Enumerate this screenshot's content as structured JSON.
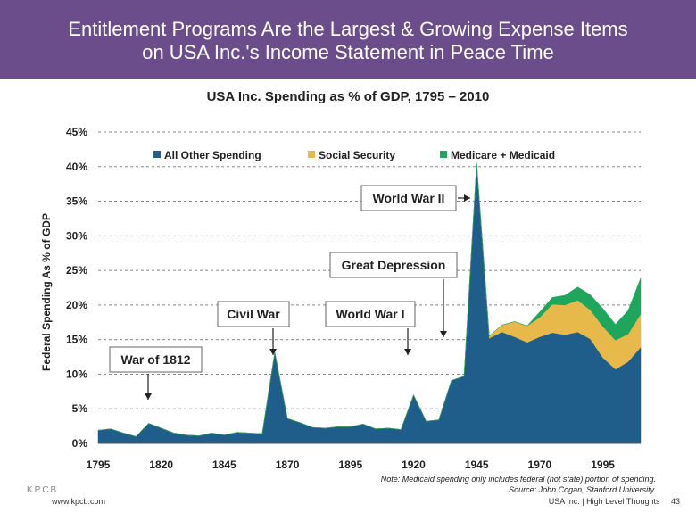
{
  "header": {
    "title_line1": "Entitlement Programs Are the Largest & Growing Expense Items",
    "title_line2": "on USA Inc.'s Income Statement in Peace Time"
  },
  "colors": {
    "banner": "#6b4d8c",
    "all_other": "#1f5d8a",
    "social_security": "#e6b94a",
    "medicare": "#1fa65c"
  },
  "chart_data": {
    "type": "area",
    "title": "USA Inc. Spending as % of GDP, 1795 – 2010",
    "ylabel": "Federal Spending As % of GDP",
    "xlabel": "",
    "ylim": [
      0,
      45
    ],
    "xlim": [
      1795,
      2010
    ],
    "yticks": [
      "0%",
      "5%",
      "10%",
      "15%",
      "20%",
      "25%",
      "30%",
      "35%",
      "40%",
      "45%"
    ],
    "xticks": [
      "1795",
      "1820",
      "1845",
      "1870",
      "1895",
      "1920",
      "1945",
      "1970",
      "1995"
    ],
    "grid": true,
    "legend_position": "top",
    "stacked": true,
    "x": [
      1795,
      1800,
      1805,
      1810,
      1815,
      1820,
      1825,
      1830,
      1835,
      1840,
      1845,
      1850,
      1855,
      1860,
      1865,
      1870,
      1875,
      1880,
      1885,
      1890,
      1895,
      1900,
      1905,
      1910,
      1915,
      1920,
      1925,
      1930,
      1935,
      1940,
      1945,
      1950,
      1955,
      1960,
      1965,
      1970,
      1975,
      1980,
      1985,
      1990,
      1995,
      2000,
      2005,
      2010
    ],
    "series": [
      {
        "name": "All Other Spending",
        "values": [
          1.9,
          2.1,
          1.5,
          1.0,
          2.9,
          2.2,
          1.5,
          1.2,
          1.1,
          1.5,
          1.2,
          1.6,
          1.5,
          1.4,
          13.2,
          3.6,
          3.0,
          2.3,
          2.2,
          2.4,
          2.4,
          2.8,
          2.1,
          2.2,
          2.0,
          7.0,
          3.2,
          3.4,
          9.1,
          9.7,
          40.5,
          15.2,
          16.1,
          15.4,
          14.6,
          15.4,
          16.0,
          15.7,
          16.1,
          15.1,
          12.4,
          10.7,
          11.8,
          13.9
        ]
      },
      {
        "name": "Social Security",
        "values": [
          0,
          0,
          0,
          0,
          0,
          0,
          0,
          0,
          0,
          0,
          0,
          0,
          0,
          0,
          0,
          0,
          0,
          0,
          0,
          0,
          0,
          0,
          0,
          0,
          0,
          0,
          0,
          0,
          0,
          0,
          0,
          0.3,
          1.0,
          2.2,
          2.4,
          2.8,
          4.1,
          4.3,
          4.6,
          4.2,
          4.5,
          4.2,
          4.0,
          4.8
        ]
      },
      {
        "name": "Medicare + Medicaid",
        "values": [
          0,
          0,
          0,
          0,
          0,
          0,
          0,
          0,
          0,
          0,
          0,
          0,
          0,
          0,
          0,
          0,
          0,
          0,
          0,
          0,
          0,
          0,
          0,
          0,
          0,
          0,
          0,
          0,
          0,
          0,
          0,
          0,
          0,
          0,
          0,
          0.8,
          1.0,
          1.4,
          1.9,
          2.2,
          2.6,
          2.3,
          3.4,
          5.2
        ]
      }
    ],
    "annotations": [
      {
        "label": "War of 1812",
        "year": 1813,
        "value": 5.5
      },
      {
        "label": "Civil War",
        "year": 1865,
        "value": 12.2
      },
      {
        "label": "World War I",
        "year": 1919,
        "value": 12.5
      },
      {
        "label": "Great Depression",
        "year": 1933,
        "value": 15.0
      },
      {
        "label": "World War II",
        "year": 1941,
        "value": 35.0
      }
    ]
  },
  "notes": {
    "line1": "Note: Medicaid spending only includes federal (not state) portion of spending.",
    "line2": "Source: John Cogan, Stanford University."
  },
  "footer": {
    "logo_text": "KPCB",
    "site": "www.kpcb.com",
    "right": "USA Inc. | High Level Thoughts",
    "page": "43"
  }
}
